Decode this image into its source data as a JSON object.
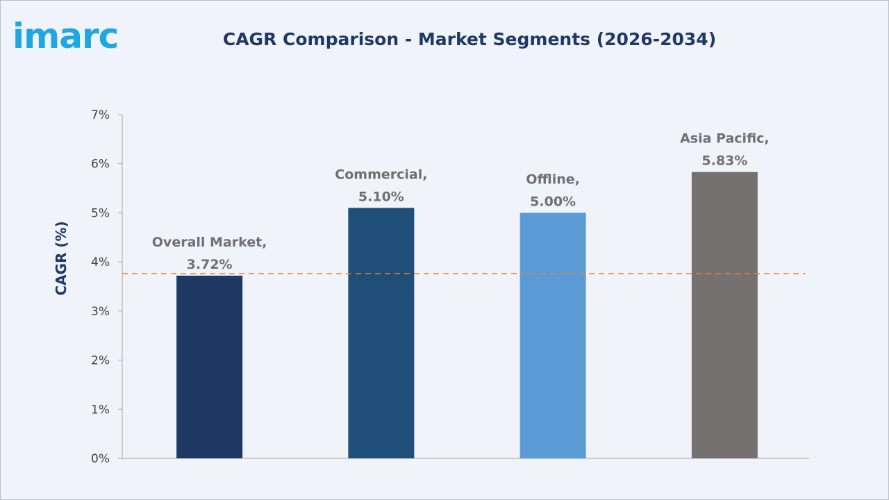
{
  "brand": {
    "logo_text": "imarc",
    "logo_color": "#1fa7e1"
  },
  "chart_data": {
    "type": "bar",
    "title": "CAGR Comparison - Market Segments (2026-2034)",
    "ylabel": "CAGR (%)",
    "xlabel": "",
    "ylim": [
      0,
      7
    ],
    "yticks": [
      "0%",
      "1%",
      "2%",
      "3%",
      "4%",
      "5%",
      "6%",
      "7%"
    ],
    "categories": [
      "Overall Market",
      "Commercial",
      "Offline",
      "Asia Pacific"
    ],
    "values": [
      3.72,
      5.1,
      5.0,
      5.83
    ],
    "data_labels": [
      [
        "Overall Market,",
        "3.72%"
      ],
      [
        "Commercial,",
        "5.10%"
      ],
      [
        "Offline,",
        "5.00%"
      ],
      [
        "Asia Pacific,",
        "5.83%"
      ]
    ],
    "colors": [
      "#1f3864",
      "#1f4e79",
      "#5b9bd5",
      "#767171"
    ],
    "reference_line": {
      "value": 3.72,
      "style": "dashed",
      "color": "#ed7d31"
    },
    "grid": false,
    "legend": "none"
  }
}
